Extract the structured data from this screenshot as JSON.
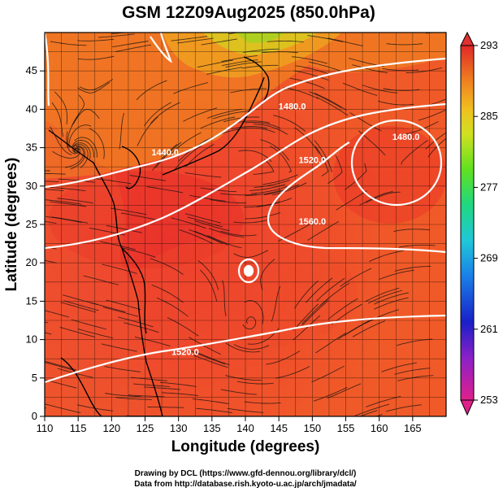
{
  "title": "GSM 12Z09Aug2025 (850.0hPa)",
  "x_axis": {
    "label": "Longitude (degrees)",
    "range": [
      110,
      170
    ],
    "ticks": [
      110,
      115,
      120,
      125,
      130,
      135,
      140,
      145,
      150,
      155,
      160,
      165
    ]
  },
  "y_axis": {
    "label": "Latitude  (degrees)",
    "range": [
      0,
      50
    ],
    "ticks": [
      0,
      5,
      10,
      15,
      20,
      25,
      30,
      35,
      40,
      45
    ]
  },
  "colorbar": {
    "range": [
      253,
      293
    ],
    "ticks": [
      293,
      285,
      277,
      269,
      261,
      253
    ],
    "colors": [
      "#e0208a",
      "#7020c0",
      "#1a20c8",
      "#1a80e8",
      "#20c8d8",
      "#20d880",
      "#60e020",
      "#c8e020",
      "#f0c020",
      "#f08020",
      "#e84020",
      "#e02828"
    ]
  },
  "contours": [
    {
      "label": "1440.0",
      "level": 1440,
      "lon": 128,
      "lat": 34
    },
    {
      "label": "1480.0",
      "level": 1480,
      "lon": 147,
      "lat": 40
    },
    {
      "label": "1520.0",
      "level": 1520,
      "lon": 150,
      "lat": 33
    },
    {
      "label": "1560.0",
      "level": 1560,
      "lon": 150,
      "lat": 25
    },
    {
      "label": "1520.0",
      "level": 1520,
      "lon": 131,
      "lat": 8
    },
    {
      "label": "1480.0",
      "level": 1480,
      "lon": 164,
      "lat": 36
    }
  ],
  "credits": {
    "line1": "Drawing by DCL (https://www.gfd-dennou.org/library/dcl/)",
    "line2": "Data from http://database.rish.kyoto-u.ac.jp/arch/jmadata/"
  }
}
